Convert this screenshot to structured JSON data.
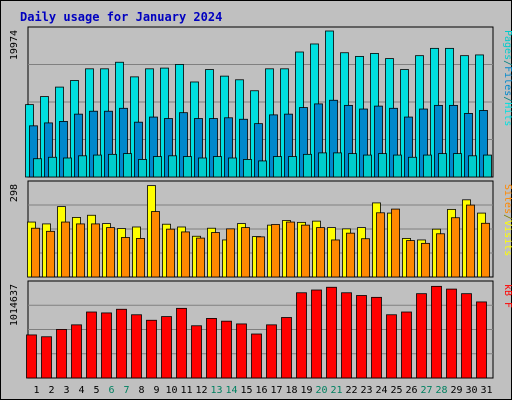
{
  "title": "Daily usage for January 2024",
  "colors": {
    "frame_bg": "#c0c0c0",
    "plot_bg": "#c0c0c0",
    "grid": "#808080",
    "title": "#0000c0",
    "hits": "#00e0e0",
    "files": "#0088cc",
    "pages": "#00cccc",
    "visits": "#ffff00",
    "sites": "#ff8800",
    "kbytes": "#ff0000",
    "weekend_label": "#008060",
    "weekday_label": "#000000"
  },
  "chart_data": [
    {
      "type": "bar",
      "name": "hits-files-pages",
      "categories": [
        "1",
        "2",
        "3",
        "4",
        "5",
        "6",
        "7",
        "8",
        "9",
        "10",
        "11",
        "12",
        "13",
        "14",
        "15",
        "16",
        "17",
        "18",
        "19",
        "20",
        "21",
        "22",
        "23",
        "24",
        "25",
        "26",
        "27",
        "28",
        "29",
        "30",
        "31"
      ],
      "ymax_label": "19974",
      "ylim": [
        0,
        19974
      ],
      "legend": [
        "Pages",
        "/",
        "Files",
        "/",
        "Hits"
      ],
      "series": [
        {
          "name": "Hits",
          "values": [
            9900,
            11000,
            12300,
            13200,
            14800,
            14800,
            15700,
            13700,
            14800,
            14900,
            15400,
            13000,
            14700,
            13800,
            13300,
            11800,
            14800,
            14800,
            17100,
            18200,
            20400,
            17000,
            16500,
            16900,
            16200,
            14700,
            16600,
            17600,
            17600,
            16600,
            16700
          ]
        },
        {
          "name": "Files",
          "values": [
            7000,
            7400,
            7600,
            8600,
            9000,
            9000,
            9400,
            7500,
            8200,
            8000,
            8800,
            8000,
            8000,
            8100,
            7900,
            7300,
            8500,
            8600,
            9500,
            10000,
            10500,
            9800,
            9300,
            9700,
            9400,
            8200,
            9300,
            9800,
            9800,
            8700,
            9100
          ]
        },
        {
          "name": "Pages",
          "values": [
            2500,
            2700,
            2600,
            2900,
            3000,
            3100,
            3200,
            2400,
            2800,
            2900,
            2800,
            2600,
            2800,
            2600,
            2400,
            2200,
            2800,
            2800,
            3100,
            3300,
            3300,
            3200,
            3000,
            3200,
            3000,
            2700,
            3000,
            3200,
            3200,
            2900,
            3000
          ]
        }
      ]
    },
    {
      "type": "bar",
      "name": "visits-sites",
      "categories": [
        "1",
        "2",
        "3",
        "4",
        "5",
        "6",
        "7",
        "8",
        "9",
        "10",
        "11",
        "12",
        "13",
        "14",
        "15",
        "16",
        "17",
        "18",
        "19",
        "20",
        "21",
        "22",
        "23",
        "24",
        "25",
        "26",
        "27",
        "28",
        "29",
        "30",
        "31"
      ],
      "ymax_label": "298",
      "ylim": [
        0,
        298
      ],
      "legend": [
        "Sites",
        "/",
        "Visits"
      ],
      "series": [
        {
          "name": "Visits",
          "values": [
            178,
            172,
            228,
            193,
            200,
            173,
            157,
            162,
            296,
            171,
            162,
            132,
            158,
            120,
            173,
            131,
            168,
            183,
            177,
            181,
            160,
            156,
            160,
            240,
            207,
            125,
            120,
            155,
            219,
            250,
            207
          ]
        },
        {
          "name": "Sites",
          "values": [
            158,
            148,
            178,
            172,
            172,
            160,
            128,
            125,
            212,
            155,
            146,
            126,
            144,
            156,
            160,
            130,
            170,
            178,
            168,
            160,
            120,
            142,
            124,
            208,
            220,
            118,
            109,
            140,
            192,
            233,
            174
          ]
        }
      ]
    },
    {
      "type": "bar",
      "name": "kbytes",
      "categories": [
        "1",
        "2",
        "3",
        "4",
        "5",
        "6",
        "7",
        "8",
        "9",
        "10",
        "11",
        "12",
        "13",
        "14",
        "15",
        "16",
        "17",
        "18",
        "19",
        "20",
        "21",
        "22",
        "23",
        "24",
        "25",
        "26",
        "27",
        "28",
        "29",
        "30",
        "31"
      ],
      "ymax_label": "1014637",
      "ylim": [
        0,
        1014637
      ],
      "legend": [
        "kB F"
      ],
      "series": [
        {
          "name": "kB F",
          "values": [
            470000,
            450000,
            530000,
            580000,
            720000,
            710000,
            750000,
            690000,
            630000,
            670000,
            760000,
            570000,
            650000,
            620000,
            590000,
            480000,
            580000,
            660000,
            930000,
            960000,
            990000,
            930000,
            900000,
            880000,
            690000,
            720000,
            920000,
            1000000,
            970000,
            920000,
            830000
          ]
        }
      ]
    }
  ]
}
